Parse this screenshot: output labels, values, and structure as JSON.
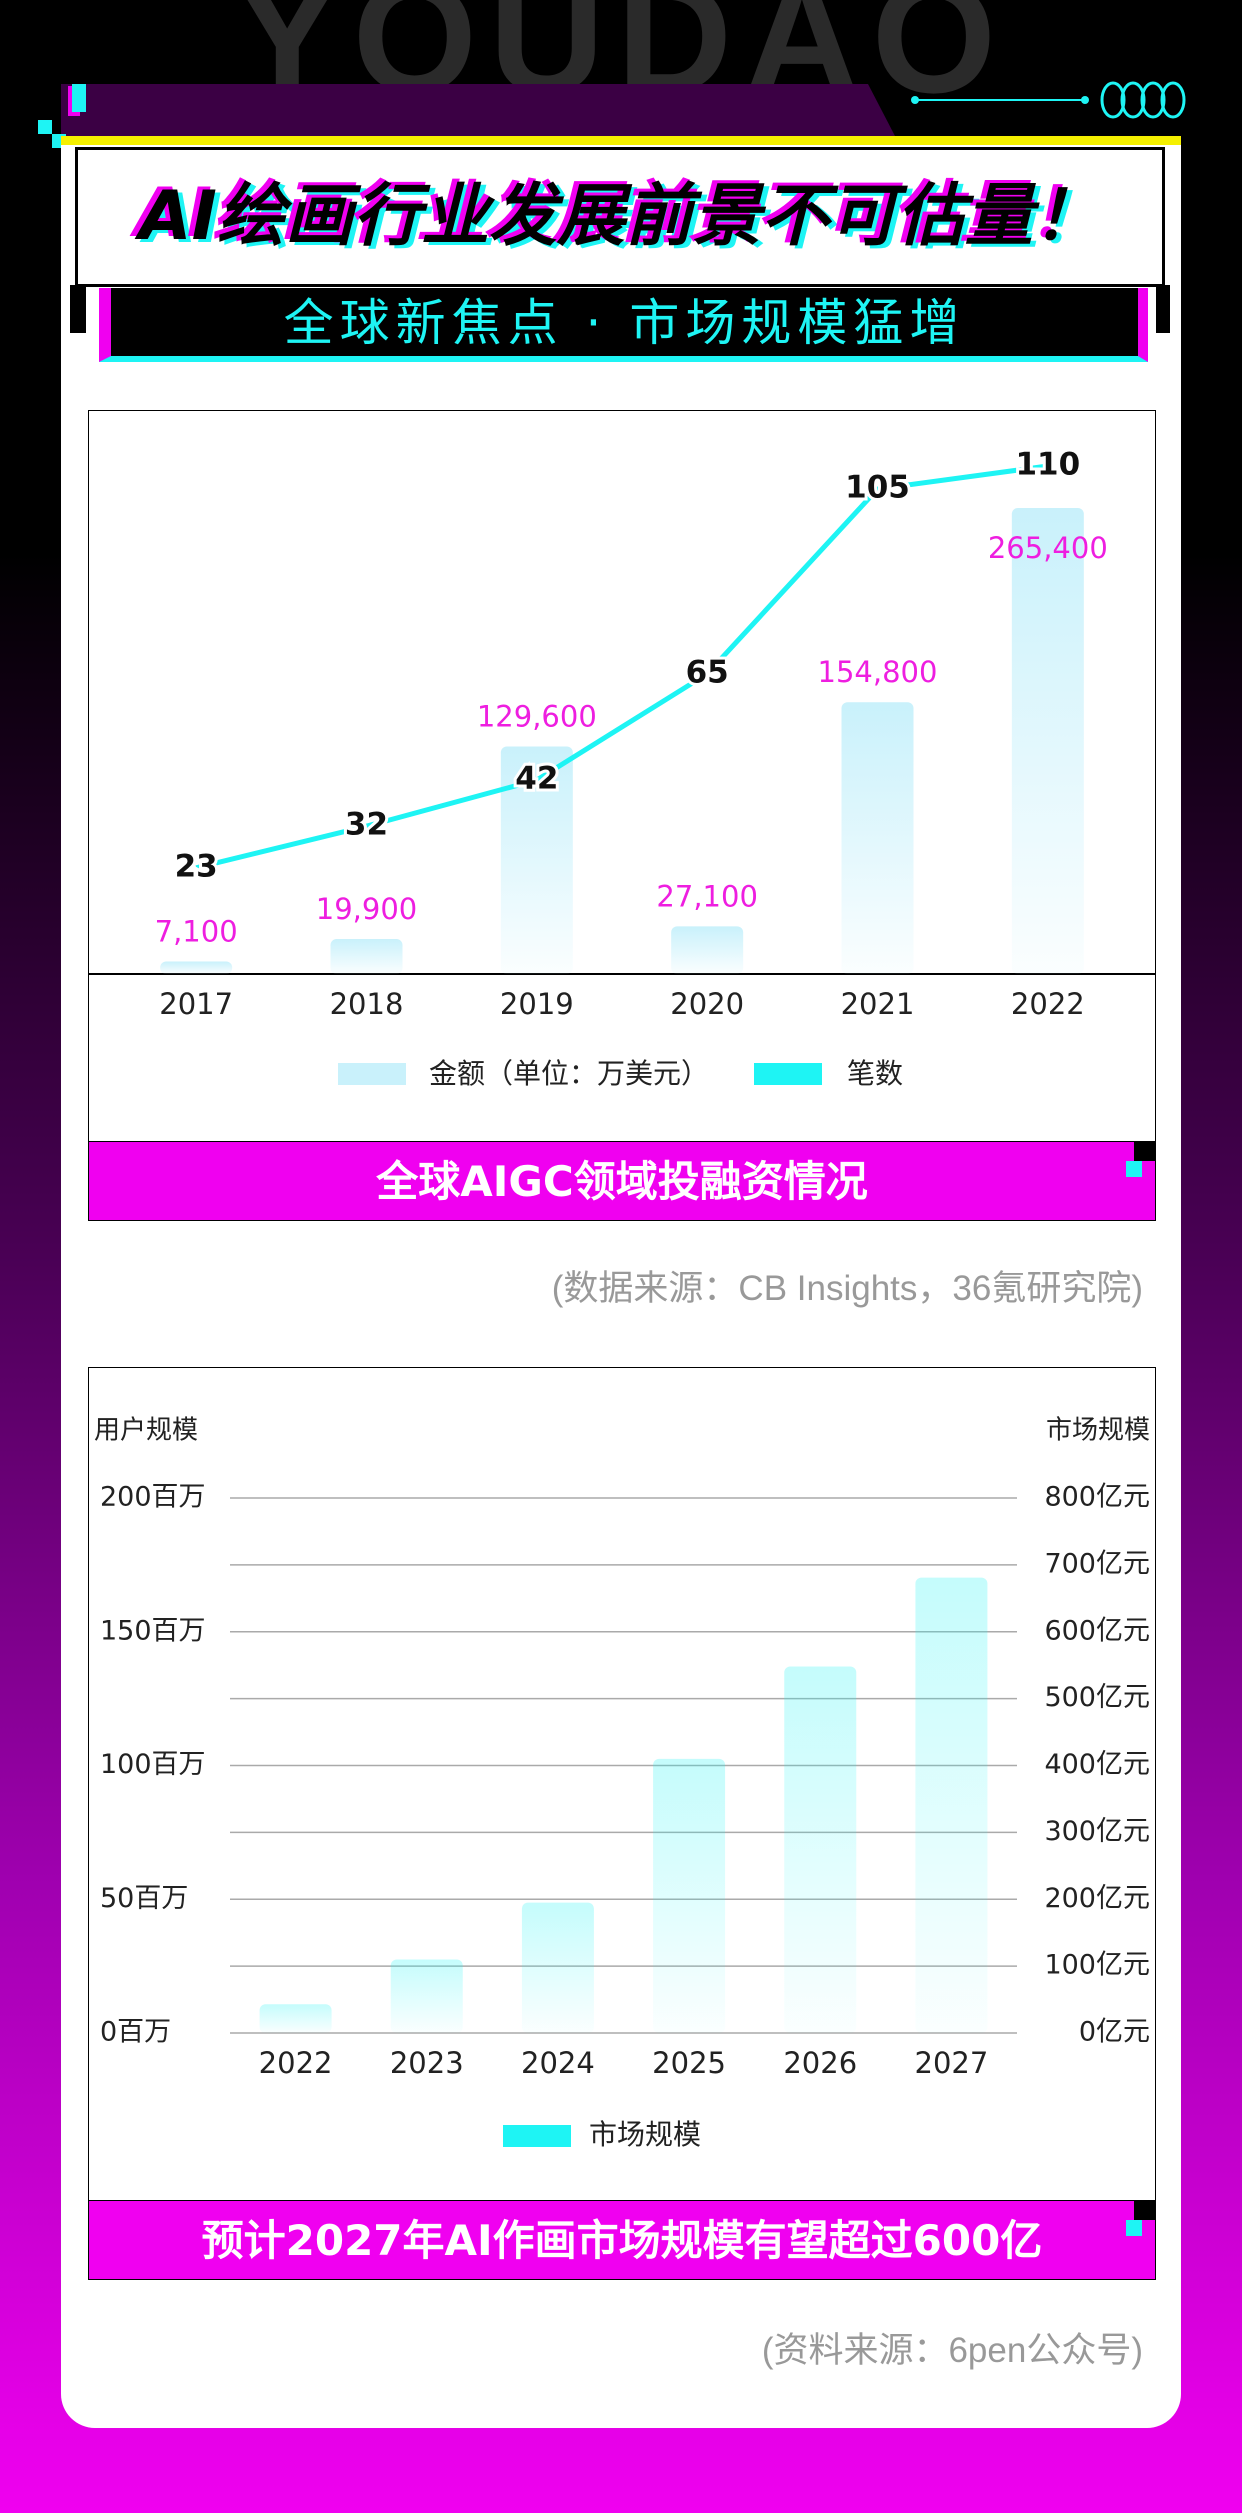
{
  "header": {
    "watermark": "YOUDAO",
    "title": "AI绘画行业发展前景不可估量！",
    "subtitle": "全球新焦点 · 市场规模猛增"
  },
  "chart_data": [
    {
      "type": "bar",
      "caption": "全球AIGC领域投融资情况",
      "source": "(数据来源：CB Insights，36氪研究院)",
      "categories": [
        "2017",
        "2018",
        "2019",
        "2020",
        "2021",
        "2022"
      ],
      "series": [
        {
          "name": "金额（单位：万美元）",
          "type": "bar",
          "color": "#c9f1fb",
          "values": [
            7100,
            19900,
            129600,
            27100,
            154800,
            265400
          ],
          "value_labels": [
            "7,100",
            "19,900",
            "129,600",
            "27,100",
            "154,800",
            "265,400"
          ]
        },
        {
          "name": "笔数",
          "type": "line",
          "color": "#1ef4f4",
          "values": [
            23,
            32,
            42,
            65,
            105,
            110
          ]
        }
      ]
    },
    {
      "type": "bar",
      "caption": "预计2027年AI作画市场规模有望超过600亿",
      "source": "(资料来源：6pen公众号)",
      "ylabel": "用户规模",
      "y2label": "市场规模",
      "categories": [
        "2022",
        "2023",
        "2024",
        "2025",
        "2026",
        "2027"
      ],
      "ylim": [
        0,
        200
      ],
      "yticks": [
        {
          "value": 0,
          "label": "0百万"
        },
        {
          "value": 50,
          "label": "50百万"
        },
        {
          "value": 100,
          "label": "100百万"
        },
        {
          "value": 150,
          "label": "150百万"
        },
        {
          "value": 200,
          "label": "200百万"
        }
      ],
      "y2lim": [
        0,
        800
      ],
      "y2ticks": [
        {
          "value": 0,
          "label": "0亿元"
        },
        {
          "value": 100,
          "label": "100亿元"
        },
        {
          "value": 200,
          "label": "200亿元"
        },
        {
          "value": 300,
          "label": "300亿元"
        },
        {
          "value": 400,
          "label": "400亿元"
        },
        {
          "value": 500,
          "label": "500亿元"
        },
        {
          "value": 600,
          "label": "600亿元"
        },
        {
          "value": 700,
          "label": "700亿元"
        },
        {
          "value": 800,
          "label": "800亿元"
        }
      ],
      "grid": true,
      "series": [
        {
          "name": "市场规模",
          "type": "bar",
          "axis": "y2",
          "color": "#1ef4f4",
          "values": [
            43,
            110,
            195,
            410,
            548,
            681
          ]
        }
      ]
    }
  ]
}
